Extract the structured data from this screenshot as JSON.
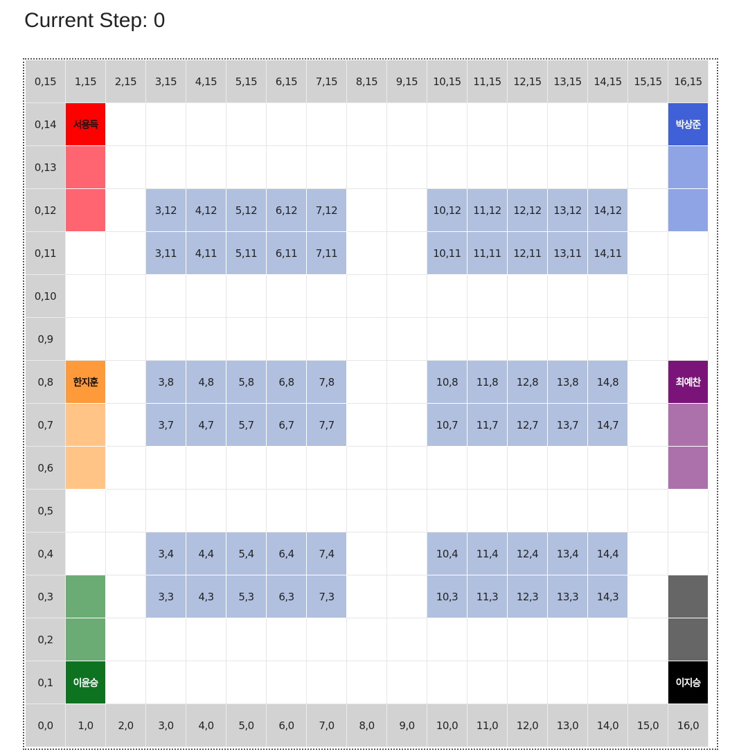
{
  "header": {
    "current_step_text": "Current Step: 0"
  },
  "grid": {
    "cols": 17,
    "rows": 16,
    "colors": {
      "axis": "#d2d2d2",
      "block": "#b0c0de",
      "empty": "#ffffff"
    },
    "blocks": [
      {
        "x": [
          3,
          7
        ],
        "y": [
          11,
          12
        ]
      },
      {
        "x": [
          10,
          14
        ],
        "y": [
          11,
          12
        ]
      },
      {
        "x": [
          3,
          7
        ],
        "y": [
          7,
          8
        ]
      },
      {
        "x": [
          10,
          14
        ],
        "y": [
          7,
          8
        ]
      },
      {
        "x": [
          3,
          7
        ],
        "y": [
          3,
          4
        ]
      },
      {
        "x": [
          10,
          14
        ],
        "y": [
          3,
          4
        ]
      }
    ],
    "players": [
      {
        "name": "서용득",
        "x": 1,
        "y": 14,
        "color": "#ff0000",
        "text_color": "#111111",
        "trail": [
          [
            1,
            13
          ],
          [
            1,
            12
          ]
        ],
        "trail_color": "#ff6470"
      },
      {
        "name": "박상준",
        "x": 16,
        "y": 14,
        "color": "#4060d8",
        "text_color": "#ffffff",
        "trail": [
          [
            16,
            13
          ],
          [
            16,
            12
          ]
        ],
        "trail_color": "#8ea4e4"
      },
      {
        "name": "한지훈",
        "x": 1,
        "y": 8,
        "color": "#ff9a3a",
        "text_color": "#111111",
        "trail": [
          [
            1,
            7
          ],
          [
            1,
            6
          ]
        ],
        "trail_color": "#ffc486"
      },
      {
        "name": "최예찬",
        "x": 16,
        "y": 8,
        "color": "#7a1478",
        "text_color": "#ffffff",
        "trail": [
          [
            16,
            7
          ],
          [
            16,
            6
          ]
        ],
        "trail_color": "#ac70aa"
      },
      {
        "name": "이윤승",
        "x": 1,
        "y": 1,
        "color": "#0e7320",
        "text_color": "#ffffff",
        "trail": [
          [
            1,
            2
          ],
          [
            1,
            3
          ]
        ],
        "trail_color": "#6aac74"
      },
      {
        "name": "이지승",
        "x": 16,
        "y": 1,
        "color": "#000000",
        "text_color": "#ffffff",
        "trail": [
          [
            16,
            2
          ],
          [
            16,
            3
          ]
        ],
        "trail_color": "#666666"
      }
    ]
  }
}
